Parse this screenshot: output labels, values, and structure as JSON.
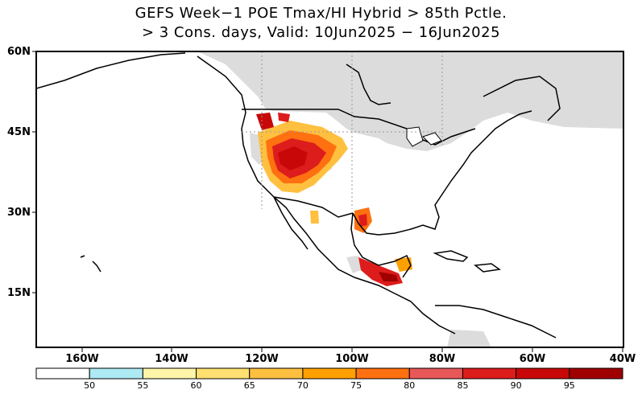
{
  "title": {
    "line1": "GEFS Week−1 POE Tmax/HI Hybrid > 85th Pctle.",
    "line2": "> 3 Cons. days, Valid: 10Jun2025 − 16Jun2025"
  },
  "map": {
    "lat_labels": [
      "60N",
      "45N",
      "30N",
      "15N"
    ],
    "lon_labels": [
      "160W",
      "140W",
      "120W",
      "100W",
      "80W",
      "60W",
      "40W"
    ],
    "colors": {
      "land": "#ffffff",
      "no_data_gray": "#dcdcdc",
      "coast": "#000000"
    }
  },
  "colorbar": {
    "labels": [
      "50",
      "55",
      "60",
      "65",
      "70",
      "75",
      "80",
      "85",
      "90",
      "95"
    ],
    "colors": [
      "#ffffff",
      "#aeeaf4",
      "#fff5a8",
      "#ffe070",
      "#ffc040",
      "#ffa000",
      "#ff7010",
      "#e85858",
      "#dd1c1c",
      "#c80808",
      "#a00000"
    ]
  }
}
